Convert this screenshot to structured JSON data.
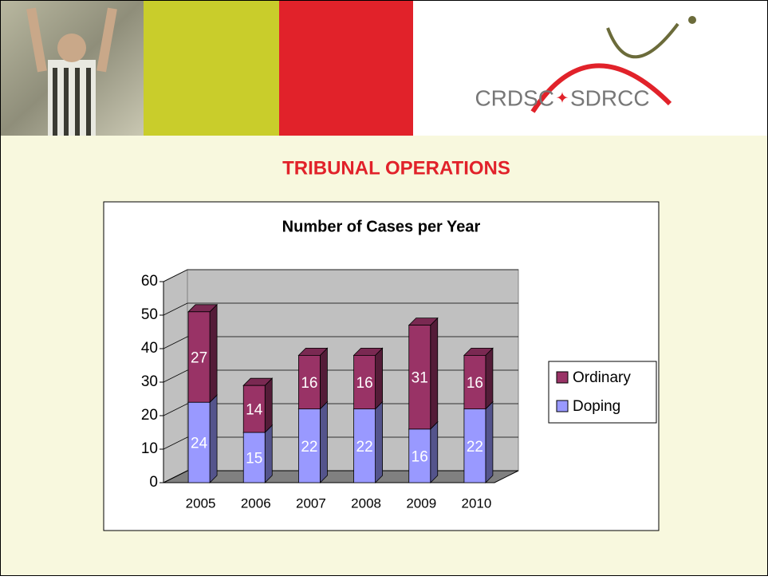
{
  "slide_title": "TRIBUNAL OPERATIONS",
  "logo": {
    "left": "CRDSC",
    "right": "SDRCC"
  },
  "chart_data": {
    "type": "bar3d_stacked",
    "title": "Number of Cases per Year",
    "categories": [
      "2005",
      "2006",
      "2007",
      "2008",
      "2009",
      "2010"
    ],
    "series": [
      {
        "name": "Doping",
        "color": "#9999ff",
        "values": [
          24,
          15,
          22,
          22,
          16,
          22
        ]
      },
      {
        "name": "Ordinary",
        "color": "#993366",
        "values": [
          27,
          14,
          16,
          16,
          31,
          16
        ]
      }
    ],
    "ylim": [
      0,
      60
    ],
    "yticks": [
      0,
      10,
      20,
      30,
      40,
      50,
      60
    ],
    "grid": true,
    "legend": "right"
  }
}
